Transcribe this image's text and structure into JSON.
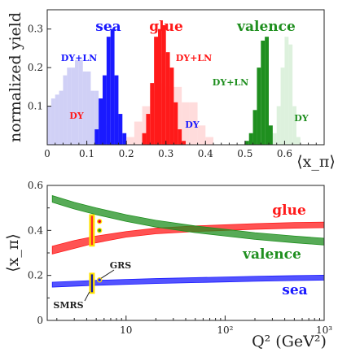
{
  "chart_data": [
    {
      "type": "bar",
      "ylabel": "normalized yield",
      "xlabel": "⟨x_π⟩",
      "xlim": [
        0,
        0.7
      ],
      "ylim": [
        0,
        0.35
      ],
      "xticks": [
        "0",
        "0.1",
        "0.2",
        "0.3",
        "0.4",
        "0.5",
        "0.6"
      ],
      "yticks": [
        "0.1",
        "0.2",
        "0.3"
      ],
      "bin_width": 0.01,
      "group_labels": [
        "sea",
        "glue",
        "valence"
      ],
      "series": [
        {
          "name": "DY+LN",
          "group": "sea",
          "fill": "solid",
          "x": [
            0.12,
            0.13,
            0.14,
            0.15,
            0.16,
            0.17,
            0.18,
            0.19,
            0.2
          ],
          "values": [
            0.04,
            0.12,
            0.18,
            0.28,
            0.3,
            0.18,
            0.08,
            0.03,
            0.0
          ]
        },
        {
          "name": "DY",
          "group": "sea",
          "fill": "pale",
          "x": [
            0.0,
            0.01,
            0.02,
            0.03,
            0.04,
            0.05,
            0.06,
            0.07,
            0.08,
            0.09,
            0.1,
            0.11,
            0.12,
            0.13,
            0.14,
            0.15
          ],
          "values": [
            0.1,
            0.12,
            0.13,
            0.14,
            0.18,
            0.2,
            0.2,
            0.22,
            0.22,
            0.19,
            0.19,
            0.14,
            0.14,
            0.11,
            0.05,
            0.0
          ]
        },
        {
          "name": "DY+LN",
          "group": "glue",
          "fill": "solid",
          "x": [
            0.24,
            0.25,
            0.26,
            0.27,
            0.28,
            0.29,
            0.3,
            0.31,
            0.32,
            0.33,
            0.34
          ],
          "values": [
            0.03,
            0.08,
            0.16,
            0.28,
            0.3,
            0.31,
            0.24,
            0.2,
            0.11,
            0.04,
            0.01
          ]
        },
        {
          "name": "DY",
          "group": "glue",
          "fill": "pale",
          "x": [
            0.2,
            0.22,
            0.24,
            0.26,
            0.28,
            0.3,
            0.32,
            0.34,
            0.36,
            0.38,
            0.4
          ],
          "values": [
            0.02,
            0.06,
            0.1,
            0.14,
            0.16,
            0.15,
            0.15,
            0.11,
            0.11,
            0.05,
            0.02
          ]
        },
        {
          "name": "DY+LN",
          "group": "valence",
          "fill": "solid",
          "x": [
            0.5,
            0.51,
            0.52,
            0.53,
            0.54,
            0.55,
            0.56
          ],
          "values": [
            0.01,
            0.03,
            0.09,
            0.2,
            0.27,
            0.28,
            0.05
          ]
        },
        {
          "name": "DY",
          "group": "valence",
          "fill": "pale",
          "x": [
            0.57,
            0.58,
            0.59,
            0.6,
            0.61,
            0.62,
            0.63
          ],
          "values": [
            0.03,
            0.1,
            0.2,
            0.28,
            0.26,
            0.1,
            0.02
          ]
        }
      ]
    },
    {
      "type": "line",
      "ylabel": "⟨x_π⟩",
      "xlabel": "Q² (GeV²)",
      "xscale": "log",
      "xlim": [
        1.6,
        1000
      ],
      "ylim": [
        0,
        0.6
      ],
      "xticks": [
        "10",
        "10²",
        "10³"
      ],
      "yticks": [
        "0",
        "0.2",
        "0.4",
        "0.6"
      ],
      "series": [
        {
          "name": "glue",
          "x": [
            1.8,
            3,
            5,
            10,
            20,
            50,
            100,
            200,
            500,
            1000
          ],
          "y_low": [
            0.295,
            0.32,
            0.345,
            0.37,
            0.385,
            0.395,
            0.4,
            0.405,
            0.41,
            0.412
          ],
          "y_high": [
            0.33,
            0.355,
            0.375,
            0.395,
            0.41,
            0.42,
            0.425,
            0.43,
            0.435,
            0.437
          ]
        },
        {
          "name": "valence",
          "x": [
            1.8,
            3,
            5,
            10,
            20,
            50,
            100,
            200,
            500,
            1000
          ],
          "y_low": [
            0.525,
            0.495,
            0.47,
            0.44,
            0.415,
            0.39,
            0.375,
            0.36,
            0.345,
            0.335
          ],
          "y_high": [
            0.555,
            0.525,
            0.5,
            0.47,
            0.445,
            0.42,
            0.405,
            0.39,
            0.375,
            0.365
          ]
        },
        {
          "name": "sea",
          "x": [
            1.8,
            3,
            5,
            10,
            20,
            50,
            100,
            200,
            500,
            1000
          ],
          "y_low": [
            0.148,
            0.152,
            0.156,
            0.16,
            0.164,
            0.168,
            0.171,
            0.174,
            0.177,
            0.179
          ],
          "y_high": [
            0.17,
            0.174,
            0.178,
            0.182,
            0.186,
            0.19,
            0.193,
            0.196,
            0.199,
            0.201
          ]
        }
      ],
      "markers": [
        {
          "name": "GRS",
          "x": 5,
          "points": [
            {
              "y": 0.44,
              "color": "#e8002a"
            },
            {
              "y": 0.4,
              "color": "#1f8f1f"
            },
            {
              "y": 0.18,
              "color": "#1a1aff"
            }
          ]
        },
        {
          "name": "SMRS",
          "x": 4.7,
          "y_low": 0.12,
          "y_high": 0.21,
          "color": "#1a1aa0"
        },
        {
          "name": "",
          "x": 4.7,
          "y_low": 0.33,
          "y_high": 0.47,
          "color": "#ff2a2a"
        }
      ]
    }
  ],
  "colors": {
    "sea": "#1a1aff",
    "sea_pale": "#c8c8f4",
    "glue": "#ff1a1a",
    "glue_pale": "#ffd6d6",
    "valence": "#1f8f1f",
    "valence_pale": "#d7efd7",
    "marker_frame": "#ffe100"
  }
}
